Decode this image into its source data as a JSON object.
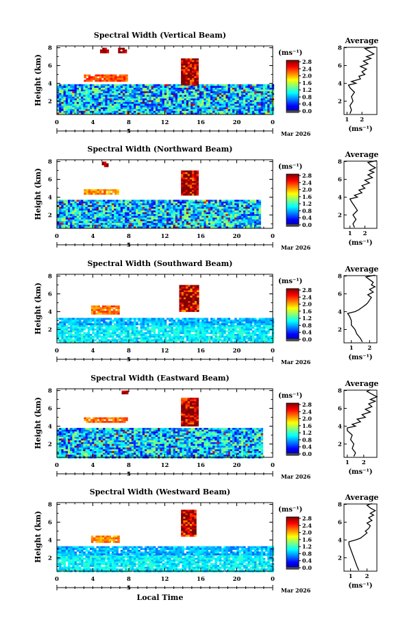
{
  "chart_data": [
    {
      "type": "heatmap",
      "title": "Spectral Width (Vertical Beam)",
      "ylabel": "Height (km)",
      "x_ticks": [
        "0",
        "4",
        "8",
        "12",
        "16",
        "20",
        "0"
      ],
      "date_ticks": [
        "5"
      ],
      "date_label": "Mar 2026",
      "y_ticks": [
        "2",
        "4",
        "6",
        "8"
      ],
      "ylim": [
        0.5,
        8.2
      ],
      "xlim": [
        0,
        24
      ],
      "colorbar": {
        "unit": "(ms⁻¹)",
        "ticks": [
          "2.8",
          "2.4",
          "2.0",
          "1.6",
          "1.2",
          "0.8",
          "0.4",
          "0.0"
        ],
        "range": [
          0,
          3.0
        ]
      },
      "regions": [
        {
          "x": [
            0,
            24
          ],
          "y": [
            0.5,
            3.9
          ],
          "value": 1.0
        },
        {
          "x": [
            3.0,
            7.8
          ],
          "y": [
            4.3,
            5.0
          ],
          "value": 2.4
        },
        {
          "x": [
            13.8,
            15.6
          ],
          "y": [
            3.8,
            6.8
          ],
          "value": 2.9
        },
        {
          "x": [
            4.8,
            5.6
          ],
          "y": [
            7.5,
            8.0
          ],
          "value": 2.9
        },
        {
          "x": [
            6.8,
            7.6
          ],
          "y": [
            7.5,
            8.0
          ],
          "value": 2.9
        }
      ],
      "average": {
        "title": "Average",
        "xlabel": "(ms⁻¹)",
        "x_ticks": [
          "1",
          "2"
        ],
        "xlim": [
          0.8,
          3.0
        ],
        "y_ticks": [
          "2",
          "4",
          "6",
          "8"
        ],
        "x": [
          1.2,
          1.3,
          1.2,
          1.4,
          1.3,
          1.5,
          1.2,
          1.1,
          1.6,
          1.3,
          1.9,
          1.8,
          2.2,
          2.0,
          2.3,
          1.9,
          2.4,
          2.1,
          2.6,
          2.3,
          2.8,
          2.5,
          2.2,
          2.9
        ],
        "y": [
          0.6,
          1.0,
          1.5,
          2.0,
          2.5,
          3.0,
          3.5,
          3.8,
          4.0,
          4.2,
          4.5,
          4.8,
          5.0,
          5.3,
          5.6,
          5.9,
          6.2,
          6.5,
          6.8,
          7.0,
          7.3,
          7.6,
          7.9,
          8.1
        ]
      }
    },
    {
      "type": "heatmap",
      "title": "Spectral Width (Northward Beam)",
      "ylabel": "Height (km)",
      "x_ticks": [
        "0",
        "4",
        "8",
        "12",
        "16",
        "20",
        "0"
      ],
      "date_ticks": [
        "5"
      ],
      "date_label": "Mar 2026",
      "y_ticks": [
        "2",
        "4",
        "6",
        "8"
      ],
      "ylim": [
        0.5,
        8.2
      ],
      "xlim": [
        0,
        24
      ],
      "colorbar": {
        "unit": "(ms⁻¹)",
        "ticks": [
          "2.8",
          "2.4",
          "2.0",
          "1.6",
          "1.2",
          "0.8",
          "0.4",
          "0.0"
        ],
        "range": [
          0,
          3.0
        ]
      },
      "regions": [
        {
          "x": [
            0,
            22.5
          ],
          "y": [
            0.5,
            3.7
          ],
          "value": 1.0
        },
        {
          "x": [
            3.0,
            6.8
          ],
          "y": [
            4.3,
            4.9
          ],
          "value": 2.2
        },
        {
          "x": [
            13.8,
            15.6
          ],
          "y": [
            4.2,
            7.0
          ],
          "value": 2.9
        },
        {
          "x": [
            5.0,
            5.6
          ],
          "y": [
            7.5,
            8.0
          ],
          "value": 2.9
        }
      ],
      "average": {
        "title": "Average",
        "xlabel": "(ms⁻¹)",
        "x_ticks": [
          "1",
          "2"
        ],
        "xlim": [
          0.6,
          2.8
        ],
        "y_ticks": [
          "2",
          "4",
          "6",
          "8"
        ],
        "x": [
          1.3,
          1.2,
          1.4,
          1.2,
          1.5,
          1.3,
          1.1,
          1.0,
          1.5,
          1.3,
          1.8,
          1.6,
          2.0,
          1.8,
          2.3,
          2.0,
          2.5,
          2.2,
          2.6,
          2.3,
          2.7,
          2.4,
          2.2,
          2.8
        ],
        "y": [
          0.6,
          1.0,
          1.5,
          2.0,
          2.5,
          3.0,
          3.5,
          3.8,
          4.0,
          4.2,
          4.5,
          4.8,
          5.0,
          5.3,
          5.6,
          5.9,
          6.2,
          6.5,
          6.8,
          7.0,
          7.3,
          7.6,
          7.9,
          8.1
        ]
      }
    },
    {
      "type": "heatmap",
      "title": "Spectral Width (Southward Beam)",
      "ylabel": "Height (km)",
      "x_ticks": [
        "0",
        "4",
        "8",
        "12",
        "16",
        "20",
        "0"
      ],
      "date_ticks": [
        "5"
      ],
      "date_label": "Mar 2026",
      "y_ticks": [
        "2",
        "4",
        "6",
        "8"
      ],
      "ylim": [
        0.5,
        8.2
      ],
      "xlim": [
        0,
        24
      ],
      "colorbar": {
        "unit": "(ms⁻¹)",
        "ticks": [
          "2.8",
          "2.4",
          "2.0",
          "1.6",
          "1.2",
          "0.8",
          "0.4",
          "0.0"
        ],
        "range": [
          0,
          3.0
        ]
      },
      "regions": [
        {
          "x": [
            0,
            24
          ],
          "y": [
            0.5,
            2.5
          ],
          "value": 1.1
        },
        {
          "x": [
            0,
            24
          ],
          "y": [
            2.5,
            3.3
          ],
          "value": 0.9
        },
        {
          "x": [
            3.8,
            6.8
          ],
          "y": [
            3.8,
            4.7
          ],
          "value": 2.3
        },
        {
          "x": [
            13.6,
            15.8
          ],
          "y": [
            4.0,
            7.0
          ],
          "value": 2.8
        }
      ],
      "average": {
        "title": "Average",
        "xlabel": "(ms⁻¹)",
        "x_ticks": [
          "1",
          "2"
        ],
        "xlim": [
          0.6,
          2.4
        ],
        "y_ticks": [
          "2",
          "4",
          "6",
          "8"
        ],
        "x": [
          1.6,
          1.5,
          1.3,
          1.2,
          1.0,
          1.0,
          0.9,
          0.8,
          1.2,
          1.4,
          1.6,
          1.8,
          1.9,
          2.0,
          2.1,
          1.9,
          2.2,
          2.0,
          2.3,
          2.1,
          2.2,
          2.0,
          1.8,
          2.3
        ],
        "y": [
          0.6,
          1.0,
          1.5,
          2.0,
          2.5,
          3.0,
          3.5,
          3.8,
          4.0,
          4.2,
          4.5,
          4.8,
          5.0,
          5.3,
          5.6,
          5.9,
          6.2,
          6.5,
          6.8,
          7.0,
          7.3,
          7.6,
          7.9,
          8.1
        ]
      }
    },
    {
      "type": "heatmap",
      "title": "Spectral Width (Eastward Beam)",
      "ylabel": "Height (km)",
      "x_ticks": [
        "0",
        "4",
        "8",
        "12",
        "16",
        "20",
        "0"
      ],
      "date_ticks": [
        "5"
      ],
      "date_label": "Mar 2026",
      "y_ticks": [
        "2",
        "4",
        "6",
        "8"
      ],
      "ylim": [
        0.5,
        8.2
      ],
      "xlim": [
        0,
        24
      ],
      "colorbar": {
        "unit": "(ms⁻¹)",
        "ticks": [
          "2.8",
          "2.4",
          "2.0",
          "1.6",
          "1.2",
          "0.8",
          "0.4",
          "0.0"
        ],
        "range": [
          0,
          3.0
        ]
      },
      "regions": [
        {
          "x": [
            0,
            22.8
          ],
          "y": [
            0.5,
            3.8
          ],
          "value": 1.0
        },
        {
          "x": [
            3.0,
            7.8
          ],
          "y": [
            4.4,
            5.0
          ],
          "value": 2.3
        },
        {
          "x": [
            13.8,
            15.6
          ],
          "y": [
            4.0,
            7.2
          ],
          "value": 2.9
        },
        {
          "x": [
            7.2,
            7.8
          ],
          "y": [
            7.6,
            8.0
          ],
          "value": 2.9
        }
      ],
      "average": {
        "title": "Average",
        "xlabel": "(ms⁻¹)",
        "x_ticks": [
          "1",
          "2"
        ],
        "xlim": [
          0.8,
          2.8
        ],
        "y_ticks": [
          "2",
          "4",
          "6",
          "8"
        ],
        "x": [
          1.4,
          1.5,
          1.3,
          1.4,
          1.2,
          1.3,
          1.0,
          1.0,
          1.5,
          1.3,
          1.8,
          1.6,
          2.1,
          1.9,
          2.4,
          2.1,
          2.5,
          2.3,
          2.7,
          2.4,
          2.8,
          2.5,
          2.2,
          2.4
        ],
        "y": [
          0.6,
          1.0,
          1.5,
          2.0,
          2.5,
          3.0,
          3.5,
          3.8,
          4.0,
          4.2,
          4.5,
          4.8,
          5.0,
          5.3,
          5.6,
          5.9,
          6.2,
          6.5,
          6.8,
          7.0,
          7.3,
          7.6,
          7.9,
          8.1
        ]
      }
    },
    {
      "type": "heatmap",
      "title": "Spectral Width (Westward Beam)",
      "ylabel": "Height (km)",
      "x_ticks": [
        "0",
        "4",
        "8",
        "12",
        "16",
        "20",
        "0"
      ],
      "date_ticks": [
        "5"
      ],
      "date_label": "Mar 2026",
      "xlabel": "Local Time",
      "y_ticks": [
        "2",
        "4",
        "6",
        "8"
      ],
      "ylim": [
        0.5,
        8.2
      ],
      "xlim": [
        0,
        24
      ],
      "colorbar": {
        "unit": "(ms⁻¹)",
        "ticks": [
          "2.8",
          "2.4",
          "2.0",
          "1.6",
          "1.2",
          "0.8",
          "0.4",
          "0.0"
        ],
        "range": [
          0,
          3.0
        ]
      },
      "regions": [
        {
          "x": [
            0,
            24
          ],
          "y": [
            0.5,
            2.4
          ],
          "value": 1.1
        },
        {
          "x": [
            0,
            24
          ],
          "y": [
            2.4,
            3.3
          ],
          "value": 0.9
        },
        {
          "x": [
            3.8,
            6.8
          ],
          "y": [
            3.7,
            4.5
          ],
          "value": 2.2
        },
        {
          "x": [
            13.8,
            15.4
          ],
          "y": [
            4.4,
            7.4
          ],
          "value": 2.8
        }
      ],
      "average": {
        "title": "Average",
        "xlabel": "(ms⁻¹)",
        "x_ticks": [
          "1",
          "2"
        ],
        "xlim": [
          0.6,
          2.6
        ],
        "y_ticks": [
          "2",
          "4",
          "6",
          "8"
        ],
        "x": [
          1.5,
          1.4,
          1.3,
          1.2,
          1.1,
          1.0,
          0.9,
          0.9,
          1.3,
          1.6,
          1.8,
          2.0,
          1.9,
          2.1,
          2.2,
          2.0,
          2.3,
          2.1,
          2.4,
          2.2,
          2.5,
          2.2,
          2.0,
          2.3
        ],
        "y": [
          0.6,
          1.0,
          1.5,
          2.0,
          2.5,
          3.0,
          3.5,
          3.8,
          4.0,
          4.2,
          4.5,
          4.8,
          5.0,
          5.3,
          5.6,
          5.9,
          6.2,
          6.5,
          6.8,
          7.0,
          7.3,
          7.6,
          7.9,
          8.1
        ]
      }
    }
  ]
}
